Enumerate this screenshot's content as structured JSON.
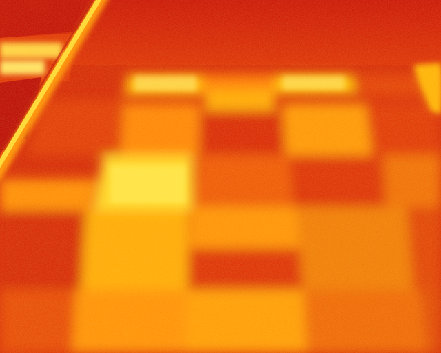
{
  "image": {
    "kind": "thermal-camera-frame",
    "palette": "iron",
    "colors": {
      "coldest": "#a80000",
      "cool": "#d42000",
      "mid": "#ee4a00",
      "warm": "#ff8800",
      "hot": "#ffc800",
      "hottest": "#fff060"
    }
  }
}
